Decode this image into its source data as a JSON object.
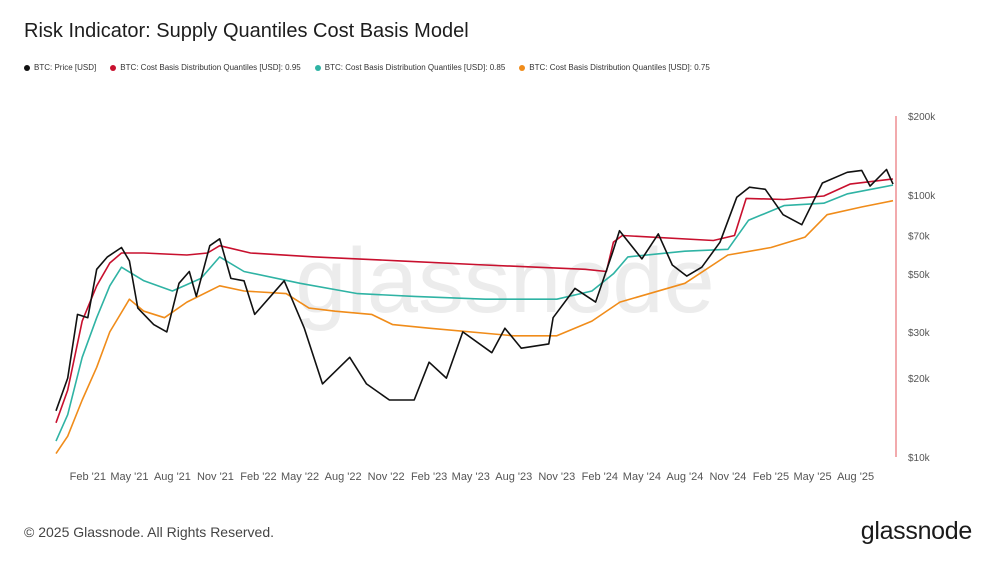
{
  "title": "Risk Indicator: Supply Quantiles Cost Basis Model",
  "footer": "© 2025 Glassnode. All Rights Reserved.",
  "brand": "glassnode",
  "watermark": "glassnode",
  "colors": {
    "price": "#111111",
    "q95": "#c8102e",
    "q85": "#2fb3a4",
    "q75": "#f08c1a",
    "marker": "#e5555b",
    "axis_text": "#555555",
    "watermark": "#ececec"
  },
  "chart_data": {
    "type": "line",
    "scale_y": "log",
    "ylim": [
      10000,
      200000
    ],
    "x_ticks": [
      "Feb '21",
      "May '21",
      "Aug '21",
      "Nov '21",
      "Feb '22",
      "May '22",
      "Aug '22",
      "Nov '22",
      "Feb '23",
      "May '23",
      "Aug '23",
      "Nov '23",
      "Feb '24",
      "May '24",
      "Aug '24",
      "Nov '24",
      "Feb '25",
      "May '25",
      "Aug '25"
    ],
    "y_ticks": [
      {
        "value": 200000,
        "label": "$200k"
      },
      {
        "value": 100000,
        "label": "$100k"
      },
      {
        "value": 70000,
        "label": "$70k"
      },
      {
        "value": 50000,
        "label": "$50k"
      },
      {
        "value": 30000,
        "label": "$30k"
      },
      {
        "value": 20000,
        "label": "$20k"
      },
      {
        "value": 10000,
        "label": "$10k"
      }
    ],
    "legend_position": "top-left",
    "series": [
      {
        "name": "BTC: Price [USD]",
        "key": "price",
        "points": [
          [
            "2020-11-25",
            15000
          ],
          [
            "2020-12-20",
            20000
          ],
          [
            "2021-01-10",
            35000
          ],
          [
            "2021-02-01",
            34000
          ],
          [
            "2021-02-20",
            52000
          ],
          [
            "2021-03-15",
            58000
          ],
          [
            "2021-04-14",
            63000
          ],
          [
            "2021-05-01",
            56000
          ],
          [
            "2021-05-19",
            37000
          ],
          [
            "2021-06-22",
            32000
          ],
          [
            "2021-07-20",
            30000
          ],
          [
            "2021-08-15",
            46000
          ],
          [
            "2021-09-06",
            51000
          ],
          [
            "2021-09-21",
            41000
          ],
          [
            "2021-10-20",
            64000
          ],
          [
            "2021-11-10",
            68000
          ],
          [
            "2021-12-04",
            48000
          ],
          [
            "2022-01-01",
            47000
          ],
          [
            "2022-01-24",
            35000
          ],
          [
            "2022-03-28",
            47000
          ],
          [
            "2022-05-10",
            31000
          ],
          [
            "2022-06-18",
            19000
          ],
          [
            "2022-08-15",
            24000
          ],
          [
            "2022-09-20",
            19000
          ],
          [
            "2022-11-08",
            16500
          ],
          [
            "2022-12-31",
            16500
          ],
          [
            "2023-02-01",
            23000
          ],
          [
            "2023-03-10",
            20000
          ],
          [
            "2023-04-14",
            30000
          ],
          [
            "2023-06-15",
            25000
          ],
          [
            "2023-07-13",
            31000
          ],
          [
            "2023-08-17",
            26000
          ],
          [
            "2023-10-15",
            27000
          ],
          [
            "2023-10-24",
            34000
          ],
          [
            "2023-12-10",
            44000
          ],
          [
            "2024-01-23",
            39000
          ],
          [
            "2024-02-28",
            60000
          ],
          [
            "2024-03-14",
            73000
          ],
          [
            "2024-05-01",
            57000
          ],
          [
            "2024-06-05",
            71000
          ],
          [
            "2024-07-05",
            54000
          ],
          [
            "2024-08-05",
            49000
          ],
          [
            "2024-09-06",
            53000
          ],
          [
            "2024-10-15",
            66000
          ],
          [
            "2024-11-20",
            98000
          ],
          [
            "2024-12-17",
            107000
          ],
          [
            "2025-01-20",
            105000
          ],
          [
            "2025-02-27",
            84000
          ],
          [
            "2025-04-08",
            77000
          ],
          [
            "2025-05-22",
            111000
          ],
          [
            "2025-07-14",
            122000
          ],
          [
            "2025-08-14",
            124000
          ],
          [
            "2025-09-01",
            108000
          ],
          [
            "2025-10-06",
            125000
          ],
          [
            "2025-10-20",
            110000
          ]
        ]
      },
      {
        "name": "BTC: Cost Basis Distribution Quantiles [USD]: 0.95",
        "key": "q95",
        "points": [
          [
            "2020-11-25",
            13500
          ],
          [
            "2020-12-20",
            18000
          ],
          [
            "2021-01-20",
            33000
          ],
          [
            "2021-02-20",
            45000
          ],
          [
            "2021-03-20",
            55000
          ],
          [
            "2021-04-14",
            60000
          ],
          [
            "2021-06-01",
            60000
          ],
          [
            "2021-09-01",
            59000
          ],
          [
            "2021-10-15",
            60000
          ],
          [
            "2021-11-10",
            64000
          ],
          [
            "2022-01-15",
            60000
          ],
          [
            "2022-06-01",
            58000
          ],
          [
            "2022-12-01",
            56000
          ],
          [
            "2023-06-01",
            54000
          ],
          [
            "2024-01-01",
            52000
          ],
          [
            "2024-02-15",
            51000
          ],
          [
            "2024-03-01",
            66000
          ],
          [
            "2024-03-20",
            70000
          ],
          [
            "2024-10-01",
            67000
          ],
          [
            "2024-11-15",
            70000
          ],
          [
            "2024-12-10",
            97000
          ],
          [
            "2025-03-01",
            96000
          ],
          [
            "2025-05-25",
            99000
          ],
          [
            "2025-07-20",
            110000
          ],
          [
            "2025-10-20",
            115000
          ]
        ]
      },
      {
        "name": "BTC: Cost Basis Distribution Quantiles [USD]: 0.85",
        "key": "q85",
        "points": [
          [
            "2020-11-25",
            11500
          ],
          [
            "2020-12-20",
            14500
          ],
          [
            "2021-01-20",
            24000
          ],
          [
            "2021-02-20",
            34000
          ],
          [
            "2021-03-20",
            45000
          ],
          [
            "2021-04-14",
            53000
          ],
          [
            "2021-06-01",
            47000
          ],
          [
            "2021-08-01",
            43000
          ],
          [
            "2021-10-01",
            48000
          ],
          [
            "2021-11-10",
            58000
          ],
          [
            "2022-01-01",
            51000
          ],
          [
            "2022-05-01",
            46000
          ],
          [
            "2022-09-01",
            42000
          ],
          [
            "2023-01-01",
            41000
          ],
          [
            "2023-06-01",
            40000
          ],
          [
            "2023-11-01",
            40000
          ],
          [
            "2024-01-15",
            43000
          ],
          [
            "2024-03-01",
            50000
          ],
          [
            "2024-04-01",
            58000
          ],
          [
            "2024-08-01",
            61000
          ],
          [
            "2024-11-01",
            62000
          ],
          [
            "2024-12-15",
            80000
          ],
          [
            "2025-03-01",
            91000
          ],
          [
            "2025-05-25",
            93000
          ],
          [
            "2025-07-15",
            101000
          ],
          [
            "2025-10-20",
            109000
          ]
        ]
      },
      {
        "name": "BTC: Cost Basis Distribution Quantiles [USD]: 0.75",
        "key": "q75",
        "points": [
          [
            "2020-11-25",
            10300
          ],
          [
            "2020-12-20",
            12000
          ],
          [
            "2021-01-20",
            16500
          ],
          [
            "2021-02-20",
            22000
          ],
          [
            "2021-03-20",
            30000
          ],
          [
            "2021-05-01",
            40000
          ],
          [
            "2021-06-01",
            36000
          ],
          [
            "2021-07-15",
            34000
          ],
          [
            "2021-09-01",
            39000
          ],
          [
            "2021-11-10",
            45000
          ],
          [
            "2022-01-01",
            43000
          ],
          [
            "2022-04-01",
            42000
          ],
          [
            "2022-05-20",
            37000
          ],
          [
            "2022-07-15",
            36000
          ],
          [
            "2022-10-01",
            35000
          ],
          [
            "2022-11-15",
            32000
          ],
          [
            "2023-02-01",
            31000
          ],
          [
            "2023-08-01",
            29000
          ],
          [
            "2023-11-01",
            29000
          ],
          [
            "2024-01-15",
            33000
          ],
          [
            "2024-03-15",
            39000
          ],
          [
            "2024-08-01",
            46000
          ],
          [
            "2024-11-01",
            59000
          ],
          [
            "2025-02-01",
            63000
          ],
          [
            "2025-04-15",
            69000
          ],
          [
            "2025-06-01",
            84000
          ],
          [
            "2025-08-15",
            90000
          ],
          [
            "2025-10-20",
            95000
          ]
        ]
      }
    ]
  }
}
